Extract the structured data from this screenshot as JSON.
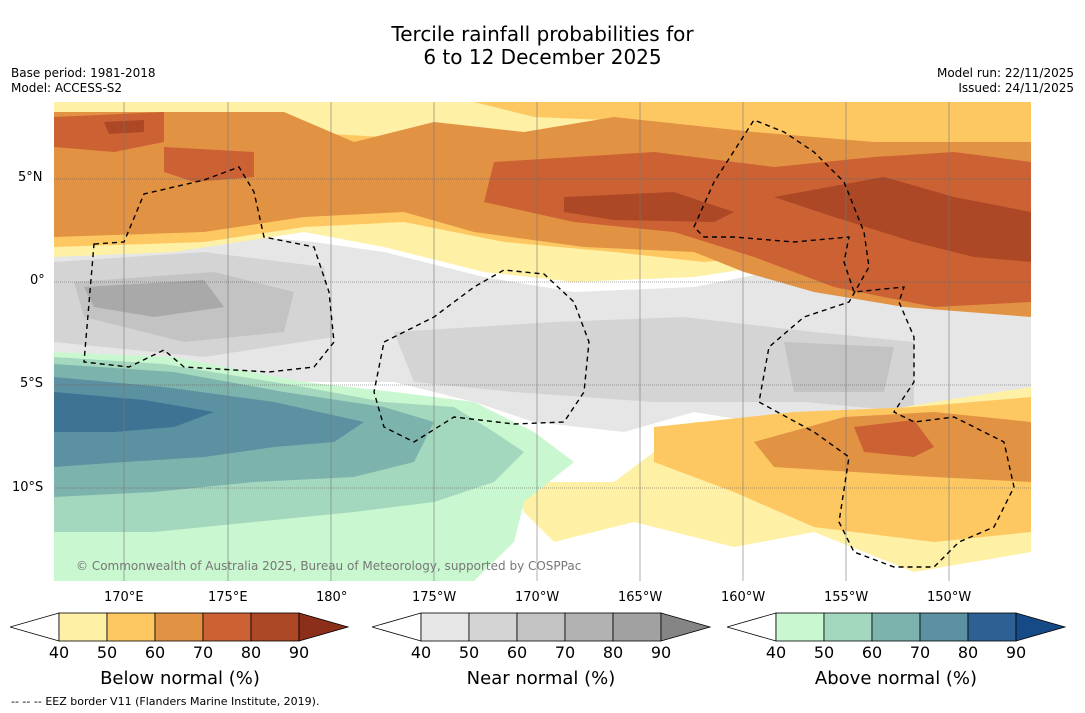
{
  "title": {
    "line1": "Tercile rainfall probabilities for",
    "line2": "6 to 12 December 2025"
  },
  "meta": {
    "base_period": "Base period: 1981-2018",
    "model": "Model: ACCESS-S2",
    "model_run": "Model run: 22/11/2025",
    "issued": "Issued: 24/11/2025"
  },
  "map": {
    "lat_labels": [
      "5°N",
      "0°",
      "5°S",
      "10°S"
    ],
    "lon_labels": [
      "170°E",
      "175°E",
      "180°",
      "175°W",
      "170°W",
      "165°W",
      "160°W",
      "155°W",
      "150°W"
    ],
    "copyright": "© Commonwealth of Australia 2025, Bureau of Meteorology, supported by COSPPac"
  },
  "colorbars": [
    {
      "name": "Below normal (%)",
      "ticks": [
        "40",
        "50",
        "60",
        "70",
        "80",
        "90"
      ],
      "colors": [
        "#fef0a5",
        "#fdc862",
        "#e29243",
        "#cc6233",
        "#ac4826",
        "#8c2f1a"
      ]
    },
    {
      "name": "Near normal (%)",
      "ticks": [
        "40",
        "50",
        "60",
        "70",
        "80",
        "90"
      ],
      "colors": [
        "#e6e6e6",
        "#d4d4d4",
        "#c3c3c3",
        "#b2b2b2",
        "#a1a1a1",
        "#858585"
      ]
    },
    {
      "name": "Above normal (%)",
      "ticks": [
        "40",
        "50",
        "60",
        "70",
        "80",
        "90"
      ],
      "colors": [
        "#c9f7cf",
        "#a4d8be",
        "#7db3ad",
        "#5b91a1",
        "#2f6094",
        "#154a86"
      ]
    }
  ],
  "footer": {
    "legend_marker": "--  --  --",
    "eez_note": "EEZ border V11 (Flanders Marine Institute, 2019)."
  }
}
